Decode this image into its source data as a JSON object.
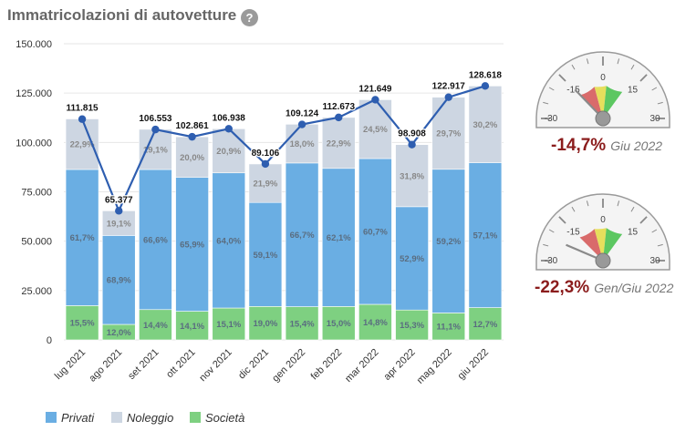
{
  "header": {
    "title": "Immatricolazioni di autovetture",
    "help_glyph": "?",
    "help_icon": "question-circle-icon"
  },
  "chart_data": {
    "type": "bar",
    "stacked": true,
    "categories": [
      "lug 2021",
      "ago 2021",
      "set 2021",
      "ott 2021",
      "nov 2021",
      "dic 2021",
      "gen 2022",
      "feb 2022",
      "mar 2022",
      "apr 2022",
      "mag 2022",
      "giu 2022"
    ],
    "totals": [
      111815,
      65377,
      106553,
      102861,
      106938,
      89106,
      109124,
      112673,
      121649,
      98908,
      122917,
      128618
    ],
    "total_labels": [
      "111.815",
      "65.377",
      "106.553",
      "102.861",
      "106.938",
      "89.106",
      "109.124",
      "112.673",
      "121.649",
      "98.908",
      "122.917",
      "128.618"
    ],
    "series": [
      {
        "name": "Privati",
        "color": "#6aaee3",
        "shares": [
          61.7,
          68.9,
          66.6,
          65.9,
          64.0,
          59.1,
          66.7,
          62.1,
          60.7,
          52.9,
          59.2,
          57.1
        ],
        "labels": [
          "61,7%",
          "68,9%",
          "66,6%",
          "65,9%",
          "64,0%",
          "59,1%",
          "66,7%",
          "62,1%",
          "60,7%",
          "52,9%",
          "59,2%",
          "57,1%"
        ]
      },
      {
        "name": "Noleggio",
        "color": "#cdd6e2",
        "shares": [
          22.9,
          19.1,
          19.1,
          20.0,
          20.9,
          21.9,
          18.0,
          22.9,
          24.5,
          31.8,
          29.7,
          30.2
        ],
        "labels": [
          "22,9%",
          "19,1%",
          "19,1%",
          "20,0%",
          "20,9%",
          "21,9%",
          "18,0%",
          "22,9%",
          "24,5%",
          "31,8%",
          "29,7%",
          "30,2%"
        ]
      },
      {
        "name": "Società",
        "color": "#7ed081",
        "shares": [
          15.5,
          12.0,
          14.4,
          14.1,
          15.1,
          19.0,
          15.4,
          15.0,
          14.8,
          15.3,
          11.1,
          12.7
        ],
        "labels": [
          "15,5%",
          "12,0%",
          "14,4%",
          "14,1%",
          "15,1%",
          "19,0%",
          "15,4%",
          "15,0%",
          "14,8%",
          "15,3%",
          "11,1%",
          "12,7%"
        ]
      }
    ],
    "line_color": "#2e5eb0",
    "ylim": [
      0,
      150000
    ],
    "yticks": [
      0,
      25000,
      50000,
      75000,
      100000,
      125000,
      150000
    ],
    "ytick_labels": [
      "0",
      "25.000",
      "50.000",
      "75.000",
      "100.000",
      "125.000",
      "150.000"
    ],
    "grid": true,
    "legend_position": "bottom-left"
  },
  "gauges": [
    {
      "value": -14.7,
      "value_label": "-14,7%",
      "period": "Giu 2022",
      "scale_labels": [
        "-30",
        "-15",
        "0",
        "15",
        "30"
      ]
    },
    {
      "value": -22.3,
      "value_label": "-22,3%",
      "period": "Gen/Giu 2022",
      "scale_labels": [
        "-30",
        "-15",
        "0",
        "15",
        "30"
      ]
    }
  ]
}
